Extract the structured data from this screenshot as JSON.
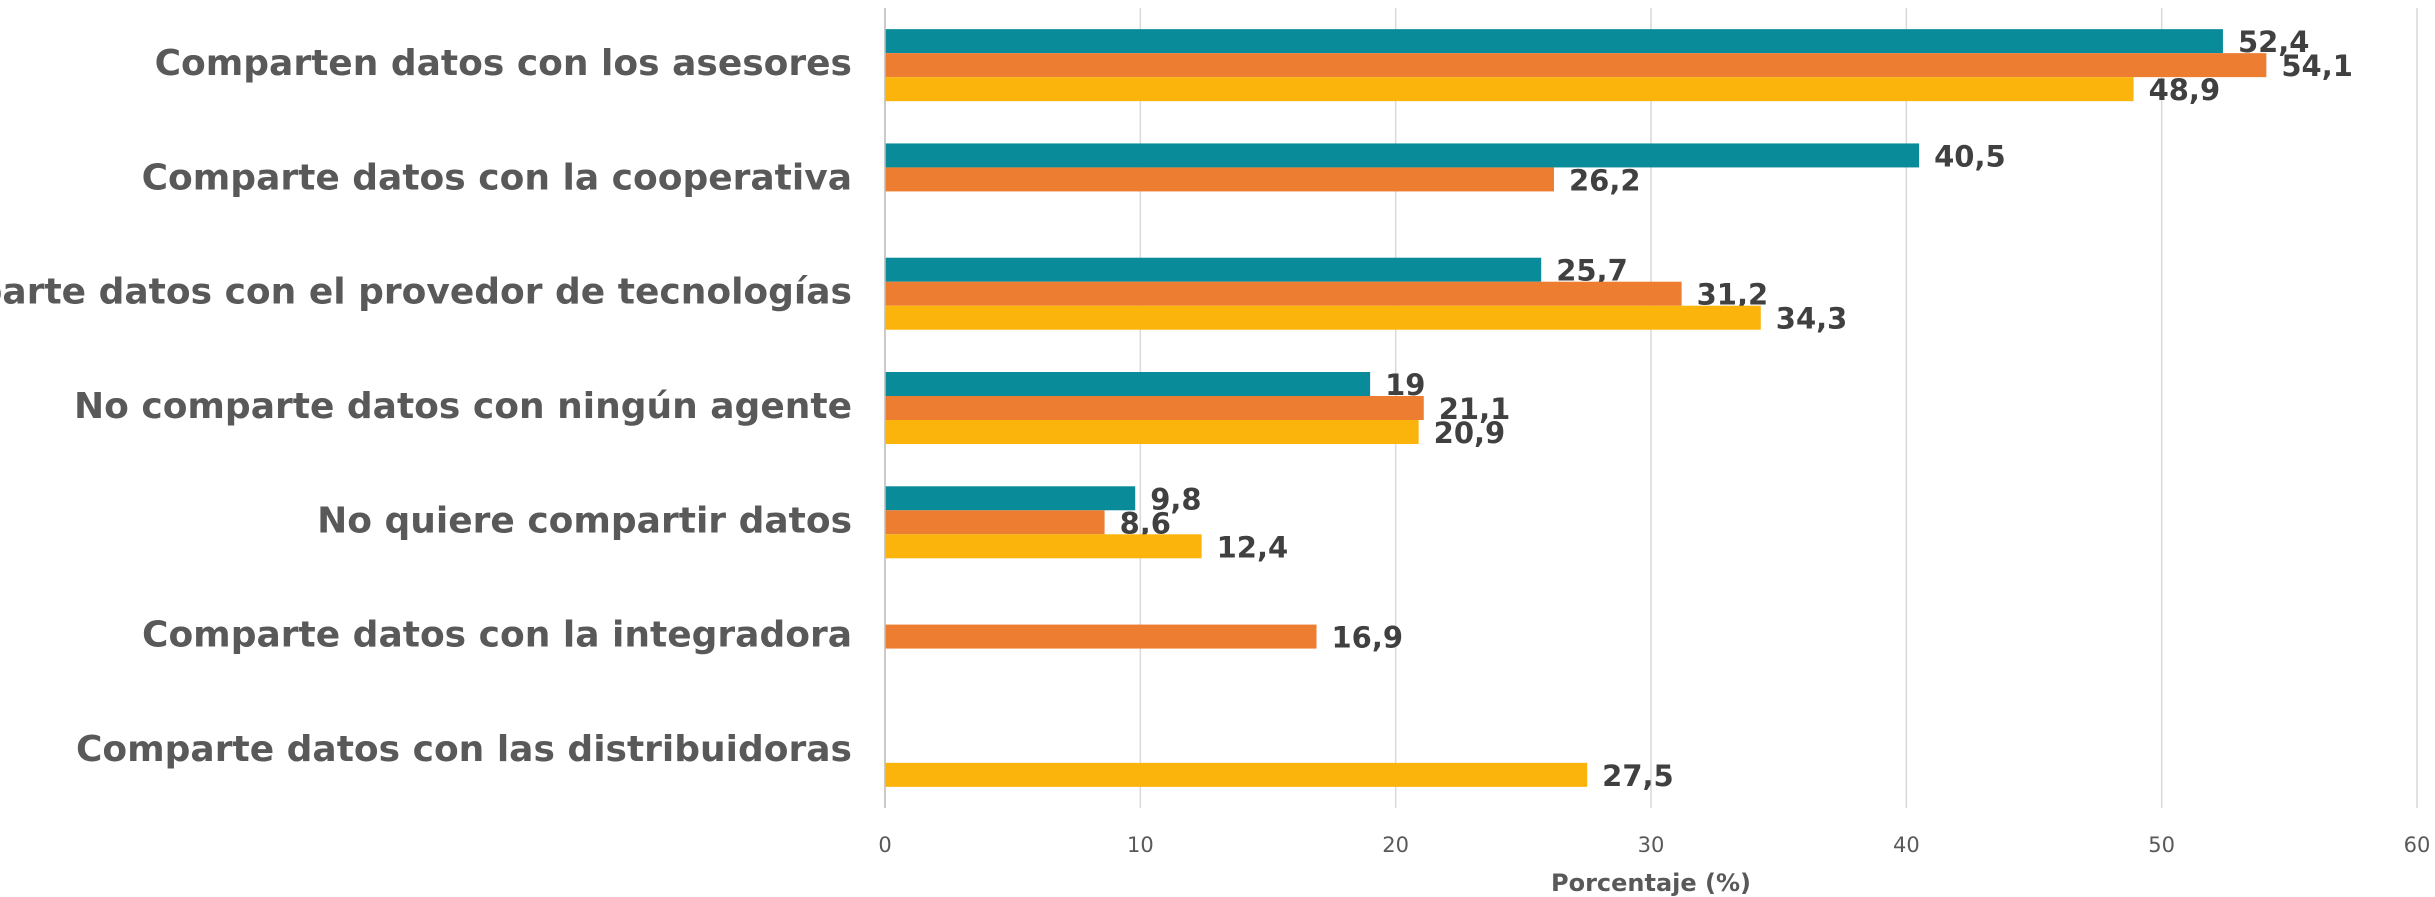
{
  "chart_data": {
    "type": "hbar",
    "categories": [
      "Comparten datos con los asesores",
      "Comparte datos con la cooperativa",
      "Comparte datos con el provedor de tecnologías",
      "No comparte datos con ningún agente",
      "No quiere compartir datos",
      "Comparte datos con la integradora",
      "Comparte datos con las distribuidoras"
    ],
    "series": [
      {
        "color": "#0a8b99",
        "values": [
          52.4,
          40.5,
          25.7,
          19,
          9.8,
          null,
          null
        ],
        "value_labels": [
          "52,4",
          "40,5",
          "25,7",
          "19",
          "9,8",
          null,
          null
        ]
      },
      {
        "color": "#ed7d31",
        "values": [
          54.1,
          26.2,
          31.2,
          21.1,
          8.6,
          16.9,
          null
        ],
        "value_labels": [
          "54,1",
          "26,2",
          "31,2",
          "21,1",
          "8,6",
          "16,9",
          null
        ]
      },
      {
        "color": "#fbb40c",
        "values": [
          48.9,
          null,
          34.3,
          20.9,
          12.4,
          null,
          27.5
        ],
        "value_labels": [
          "48,9",
          null,
          "34,3",
          "20,9",
          "12,4",
          null,
          "27,5"
        ]
      }
    ],
    "x_label": "Porcentaje (%)",
    "xlim": [
      0,
      60
    ],
    "xticks": [
      0,
      10,
      20,
      30,
      40,
      50,
      60
    ],
    "grid": true
  }
}
